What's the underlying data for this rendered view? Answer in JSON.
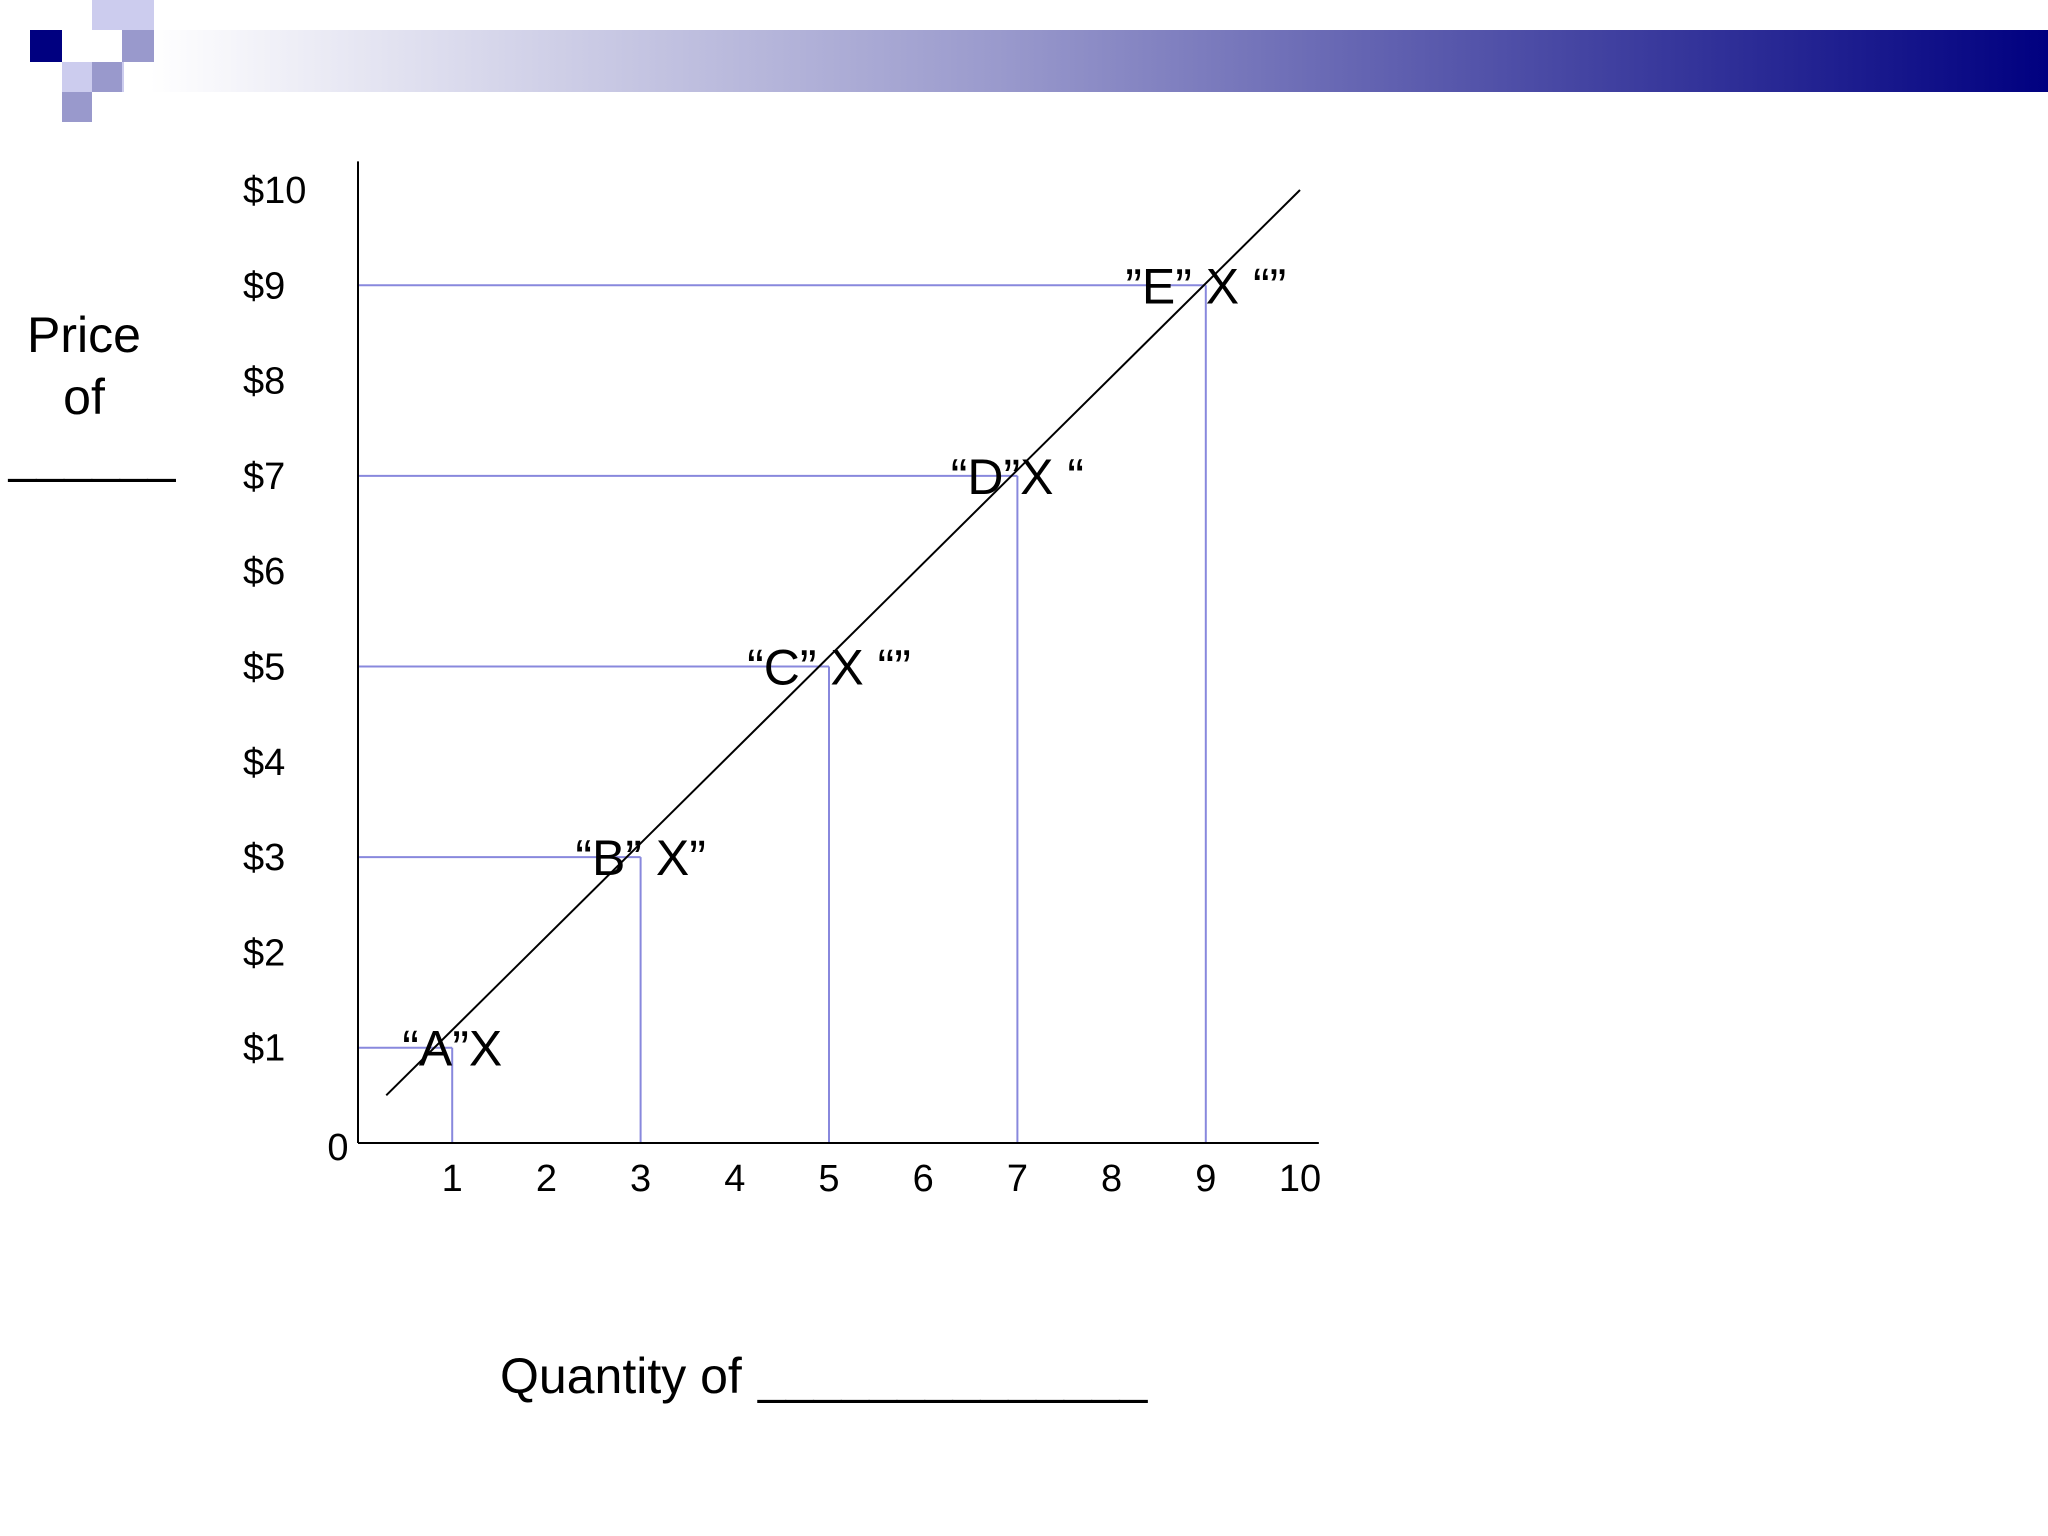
{
  "slide": {
    "banner_gradient": [
      "#ffffff",
      "#9999cc",
      "#000080"
    ],
    "deco_square_colors": [
      "#000080",
      "#9999cc",
      "#ccccee"
    ]
  },
  "chart_data": {
    "type": "line",
    "title": "",
    "ylabel_lines": [
      "Price",
      "of"
    ],
    "ylabel_blank": "______",
    "xlabel": "Quantity of",
    "xlabel_blank": "______________",
    "origin_label": "0",
    "xlim": [
      0,
      10.2
    ],
    "ylim": [
      0,
      10.3
    ],
    "x_ticks": [
      "1",
      "2",
      "3",
      "4",
      "5",
      "6",
      "7",
      "8",
      "9",
      "10"
    ],
    "y_ticks": [
      "$1",
      "$2",
      "$3",
      "$4",
      "$5",
      "$6",
      "$7",
      "$8",
      "$9",
      "$10"
    ],
    "grid": false,
    "line": {
      "x": [
        0.3,
        10
      ],
      "y": [
        0.5,
        10
      ],
      "color": "#000000"
    },
    "guide_color": "#8888dd",
    "points": [
      {
        "label": "“A”X",
        "x": 1,
        "y": 1
      },
      {
        "label": "“B” X”",
        "x": 3,
        "y": 3
      },
      {
        "label": "“C” X “”",
        "x": 5,
        "y": 5
      },
      {
        "label": "“D”X “",
        "x": 7,
        "y": 7
      },
      {
        "label": "”E” X “”",
        "x": 9,
        "y": 9
      }
    ]
  }
}
